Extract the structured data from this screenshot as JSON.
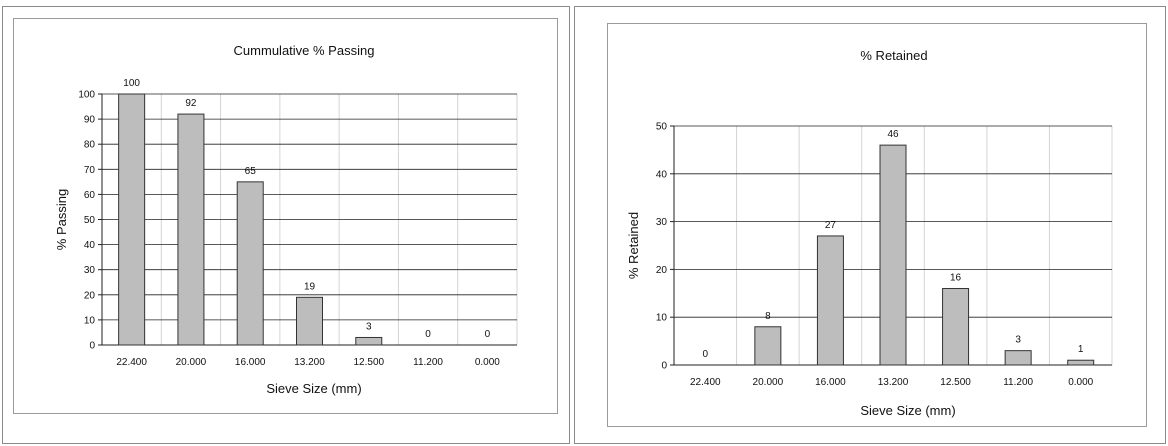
{
  "chart_data": [
    {
      "type": "bar",
      "title": "Cummulative % Passing",
      "xlabel": "Sieve Size (mm)",
      "ylabel": "% Passing",
      "categories": [
        "22.400",
        "20.000",
        "16.000",
        "13.200",
        "12.500",
        "11.200",
        "0.000"
      ],
      "values": [
        100,
        92,
        65,
        19,
        3,
        0,
        0
      ],
      "data_labels": [
        "100",
        "92",
        "65",
        "19",
        "3",
        "0",
        "0"
      ],
      "ylim": [
        0,
        100
      ],
      "yticks": [
        "0",
        "10",
        "20",
        "30",
        "40",
        "50",
        "60",
        "70",
        "80",
        "90",
        "100"
      ],
      "grid": true,
      "bar_color": "#bdbdbd"
    },
    {
      "type": "bar",
      "title": "% Retained",
      "xlabel": "Sieve Size (mm)",
      "ylabel": "% Retained",
      "categories": [
        "22.400",
        "20.000",
        "16.000",
        "13.200",
        "12.500",
        "11.200",
        "0.000"
      ],
      "values": [
        0,
        8,
        27,
        46,
        16,
        3,
        1
      ],
      "data_labels": [
        "0",
        "8",
        "27",
        "46",
        "16",
        "3",
        "1"
      ],
      "ylim": [
        0,
        50
      ],
      "yticks": [
        "0",
        "10",
        "20",
        "30",
        "40",
        "50"
      ],
      "grid": true,
      "bar_color": "#bdbdbd"
    }
  ]
}
